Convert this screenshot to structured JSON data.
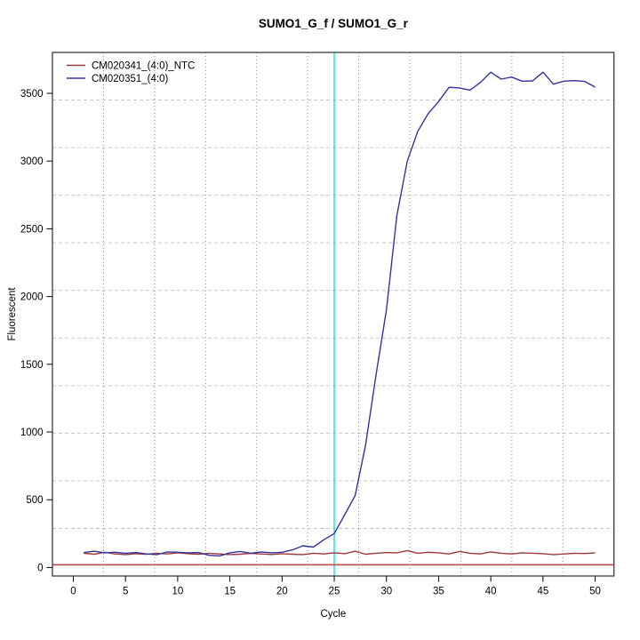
{
  "title": "SUMO1_G_f / SUMO1_G_r",
  "colors": {
    "background": "#ffffff",
    "panel_border": "#3c3c3c",
    "grid_horizontal": "#c6c6c6",
    "grid_vertical": "#8e8e8e",
    "tick": "#000000",
    "ntc_series": "#9e3939",
    "sample_series": "#33339e",
    "baseline_line": "#c05454",
    "cycle_marker_line": "#00e0e0"
  },
  "chart_data": {
    "type": "line",
    "title": "SUMO1_G_f / SUMO1_G_r",
    "xlabel": "Cycle",
    "ylabel": "Fluorescent",
    "xlim": [
      -2,
      51.8
    ],
    "ylim": [
      -63,
      3802
    ],
    "x_ticks": [
      0,
      5,
      10,
      15,
      20,
      25,
      30,
      35,
      40,
      45,
      50
    ],
    "y_ticks": [
      0,
      500,
      1000,
      1500,
      2000,
      2500,
      3000,
      3500
    ],
    "grid": {
      "inner_h_lines": 10,
      "inner_v_lines": 10,
      "h_style": "dashed",
      "v_style": "dotted"
    },
    "vline": {
      "x": 25,
      "color": "#00e0e0",
      "label": "cycle-25-marker"
    },
    "hline": {
      "y": 20,
      "color": "#c05454",
      "label": "baseline"
    },
    "legend_position": "top-left",
    "x": [
      1,
      2,
      3,
      4,
      5,
      6,
      7,
      8,
      9,
      10,
      11,
      12,
      13,
      14,
      15,
      16,
      17,
      18,
      19,
      20,
      21,
      22,
      23,
      24,
      25,
      26,
      27,
      28,
      29,
      30,
      31,
      32,
      33,
      34,
      35,
      36,
      37,
      38,
      39,
      40,
      41,
      42,
      43,
      44,
      45,
      46,
      47,
      48,
      49,
      50
    ],
    "series": [
      {
        "name": "CM020341_(4:0)_NTC",
        "color": "#9e3939",
        "values": [
          105,
          98,
          112,
          100,
          95,
          102,
          98,
          105,
          100,
          108,
          102,
          98,
          105,
          100,
          95,
          98,
          104,
          100,
          96,
          102,
          98,
          95,
          105,
          100,
          108,
          102,
          120,
          98,
          105,
          110,
          108,
          125,
          105,
          112,
          108,
          100,
          118,
          105,
          100,
          115,
          105,
          100,
          108,
          105,
          102,
          95,
          100,
          105,
          103,
          108
        ]
      },
      {
        "name": "CM020351_(4:0)",
        "color": "#33339e",
        "values": [
          110,
          120,
          108,
          112,
          105,
          110,
          100,
          95,
          115,
          112,
          108,
          110,
          90,
          85,
          108,
          118,
          105,
          115,
          108,
          112,
          130,
          160,
          150,
          205,
          250,
          390,
          530,
          900,
          1420,
          1900,
          2600,
          3000,
          3220,
          3350,
          3440,
          3545,
          3540,
          3524,
          3580,
          3656,
          3605,
          3620,
          3590,
          3592,
          3656,
          3568,
          3590,
          3594,
          3588,
          3546
        ]
      }
    ]
  }
}
